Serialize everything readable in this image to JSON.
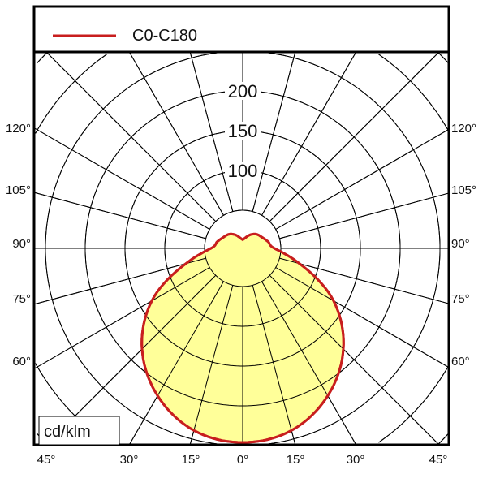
{
  "chart_data": {
    "type": "polar",
    "unit_label": "cd/klm",
    "legend": {
      "placement": "top",
      "entries": [
        {
          "name": "C0-C180",
          "color": "#c81e1e"
        }
      ]
    },
    "fill_color": "#ffff99",
    "radial_ticks": [
      50,
      100,
      150,
      200,
      250,
      300,
      350
    ],
    "radial_tick_labels": [
      "100",
      "150",
      "200"
    ],
    "angle_step_deg": 15,
    "left_angle_labels": [
      "120°",
      "105°",
      "90°",
      "75°",
      "60°"
    ],
    "right_angle_labels": [
      "120°",
      "105°",
      "90°",
      "75°",
      "60°"
    ],
    "bottom_angle_labels": [
      "45°",
      "30°",
      "15°",
      "0°",
      "15°",
      "30°",
      "45°"
    ],
    "series": [
      {
        "name": "C0-C180",
        "symmetric": true,
        "angles_deg": [
          0,
          15,
          30,
          45,
          60,
          75,
          90,
          105,
          120,
          135,
          150,
          165,
          180
        ],
        "values": [
          246,
          239,
          216,
          181,
          134,
          76,
          42,
          35,
          30,
          27,
          22,
          16,
          13
        ]
      }
    ]
  }
}
